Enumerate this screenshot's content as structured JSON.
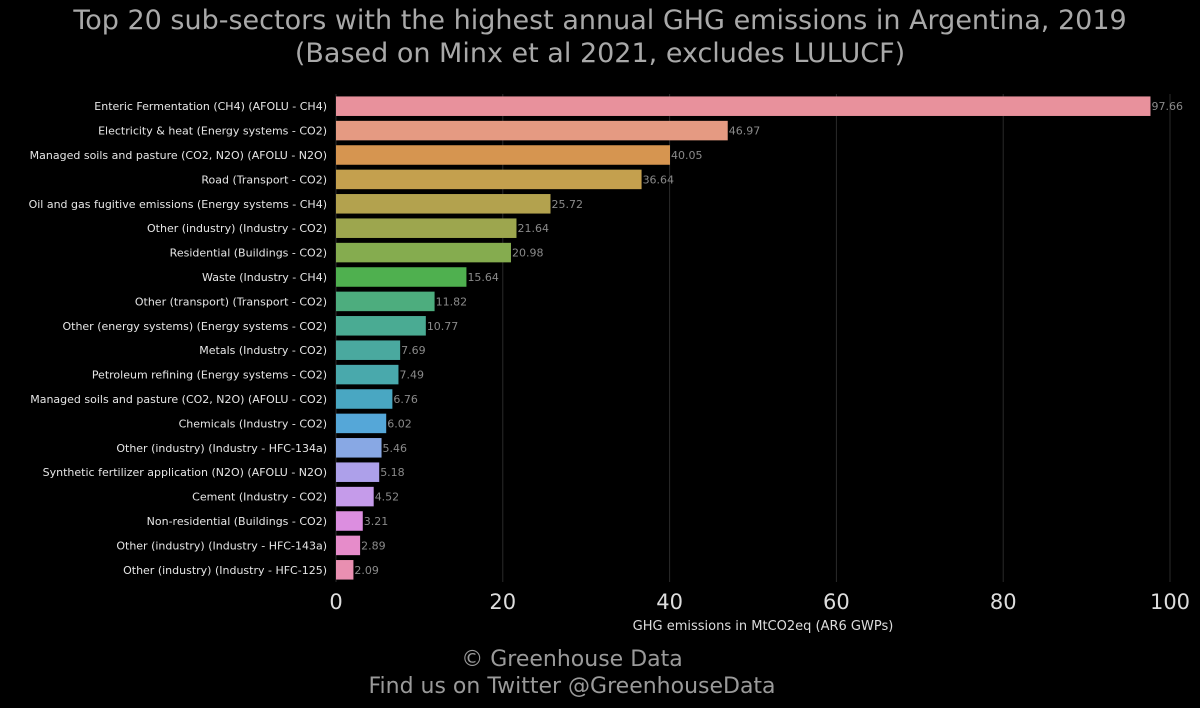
{
  "chart_data": {
    "type": "bar",
    "orientation": "horizontal",
    "title": "Top 20 sub-sectors with the highest annual GHG emissions in Argentina, 2019",
    "subtitle": "(Based on Minx et al 2021, excludes LULUCF)",
    "xlabel": "GHG emissions in MtCO2eq (AR6 GWPs)",
    "ylabel": "",
    "xlim": [
      0,
      100
    ],
    "xticks": [
      "0",
      "20",
      "40",
      "60",
      "80",
      "100"
    ],
    "grid": true,
    "legend": "none",
    "categories": [
      "Enteric Fermentation (CH4) (AFOLU - CH4)",
      "Electricity & heat (Energy systems - CO2)",
      "Managed soils and pasture (CO2, N2O) (AFOLU - N2O)",
      "Road (Transport - CO2)",
      "Oil and gas fugitive emissions (Energy systems - CH4)",
      "Other (industry) (Industry - CO2)",
      "Residential (Buildings - CO2)",
      "Waste (Industry - CH4)",
      "Other (transport) (Transport - CO2)",
      "Other (energy systems) (Energy systems - CO2)",
      "Metals (Industry - CO2)",
      "Petroleum refining (Energy systems - CO2)",
      "Managed soils and pasture (CO2, N2O) (AFOLU - CO2)",
      "Chemicals (Industry - CO2)",
      "Other (industry) (Industry - HFC-134a)",
      "Synthetic fertilizer application (N2O) (AFOLU - N2O)",
      "Cement (Industry - CO2)",
      "Non-residential (Buildings - CO2)",
      "Other (industry) (Industry - HFC-143a)",
      "Other (industry) (Industry - HFC-125)"
    ],
    "values": [
      97.66,
      46.97,
      40.05,
      36.64,
      25.72,
      21.64,
      20.98,
      15.64,
      11.82,
      10.77,
      7.69,
      7.49,
      6.76,
      6.02,
      5.46,
      5.18,
      4.52,
      3.21,
      2.89,
      2.09
    ],
    "value_labels": [
      "97.66",
      "46.97",
      "40.05",
      "36.64",
      "25.72",
      "21.64",
      "20.98",
      "15.64",
      "11.82",
      "10.77",
      "7.69",
      "7.49",
      "6.76",
      "6.02",
      "5.46",
      "5.18",
      "4.52",
      "3.21",
      "2.89",
      "2.09"
    ],
    "colors": [
      "#e8919c",
      "#e59a82",
      "#d69550",
      "#c4a04e",
      "#b3a24e",
      "#9da64e",
      "#85ac4f",
      "#4fb04f",
      "#4dad7e",
      "#4aab93",
      "#4aa99f",
      "#49a9ac",
      "#49a7c2",
      "#55a7d8",
      "#88a8e4",
      "#ada0ea",
      "#c59bea",
      "#dc8ee0",
      "#e68cca",
      "#e98fb1"
    ]
  },
  "footer": {
    "line1": "© Greenhouse Data",
    "line2": "Find us on Twitter @GreenhouseData"
  }
}
